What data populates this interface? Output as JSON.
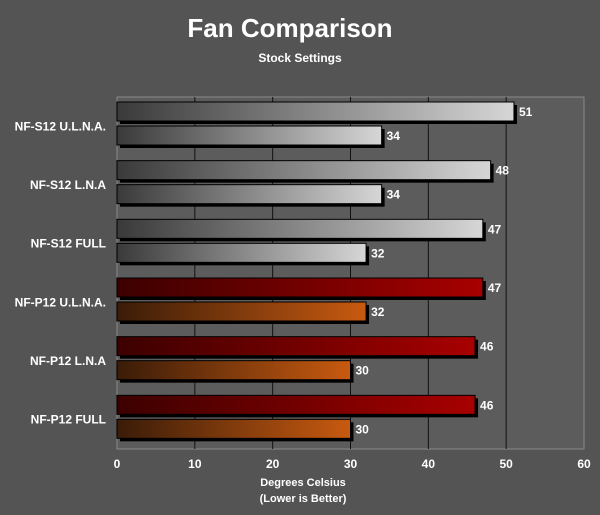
{
  "chart_data": {
    "type": "bar",
    "orientation": "horizontal",
    "title": "Fan Comparison",
    "subtitle": "Stock Settings",
    "xlabel": "Degrees Celsius",
    "xlabel_note": "(Lower is Better)",
    "ylabel": "",
    "xlim": [
      0,
      60
    ],
    "xticks": [
      0,
      10,
      20,
      30,
      40,
      50,
      60
    ],
    "grid": true,
    "legend": "none",
    "categories": [
      "NF-S12 U.L.N.A.",
      "NF-S12 L.N.A",
      "NF-S12 FULL",
      "NF-P12 U.L.N.A.",
      "NF-P12 L.N.A",
      "NF-P12 FULL"
    ],
    "series": [
      {
        "values": [
          51,
          48,
          47,
          47,
          46,
          46
        ]
      },
      {
        "values": [
          34,
          34,
          32,
          32,
          30,
          30
        ]
      }
    ],
    "group_colors": {
      "silver": {
        "dark": "#3a3a3a",
        "light": "#d4d4d4"
      },
      "red_top": {
        "dark": "#3c0000",
        "light": "#a50000"
      },
      "red_bottom": {
        "dark": "#3a1c08",
        "light": "#c85a10"
      }
    }
  }
}
